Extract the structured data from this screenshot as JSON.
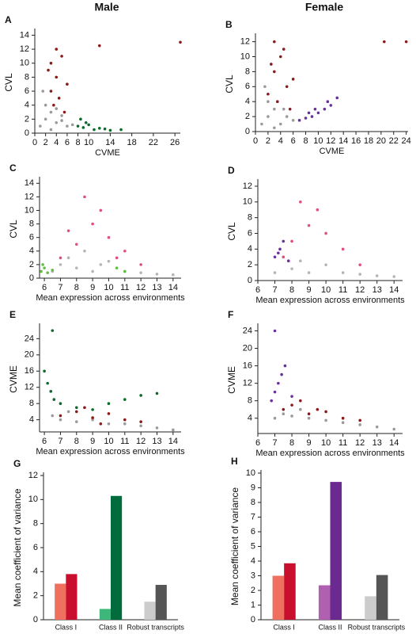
{
  "figure": {
    "columns": [
      "Male",
      "Female"
    ]
  },
  "chart_data": [
    {
      "type": "scatter",
      "panel": "A",
      "xlabel": "CVME",
      "ylabel": "CVL",
      "xlim": [
        0,
        27
      ],
      "ylim": [
        0,
        14.5
      ],
      "xticks": [
        0,
        2,
        4,
        6,
        8,
        10,
        14,
        18,
        22,
        26
      ],
      "yticks": [
        0,
        2,
        4,
        6,
        8,
        10,
        12,
        14
      ],
      "series": [
        {
          "color": "#9a9a9a",
          "x": [
            1,
            2,
            3,
            4,
            5,
            6,
            2,
            3,
            4,
            7,
            1.5,
            5
          ],
          "values": [
            1,
            2,
            3,
            1.5,
            2.5,
            1,
            4,
            0.5,
            3.5,
            1.2,
            6,
            1.8
          ]
        },
        {
          "color": "#8b1a1a",
          "x": [
            3,
            4,
            5,
            3.5,
            4.5,
            2.5,
            6,
            5.5,
            4,
            3,
            12,
            27
          ],
          "values": [
            6,
            8,
            11,
            4,
            5,
            9,
            7,
            3,
            12,
            10,
            12.5,
            13
          ]
        },
        {
          "color": "#0a6b2a",
          "x": [
            8,
            9,
            10,
            11,
            12,
            13,
            14,
            16,
            9.5,
            8.5
          ],
          "values": [
            1,
            0.8,
            1.2,
            0.5,
            0.7,
            0.6,
            0.4,
            0.5,
            1.5,
            2
          ]
        }
      ]
    },
    {
      "type": "scatter",
      "panel": "B",
      "xlabel": "CVME",
      "ylabel": "CVL",
      "xlim": [
        0,
        24.3
      ],
      "ylim": [
        0,
        12.7
      ],
      "xticks": [
        0,
        2,
        4,
        6,
        8,
        10,
        12,
        14,
        16,
        18,
        20,
        22,
        24
      ],
      "yticks": [
        0,
        2,
        4,
        6,
        8,
        10,
        12
      ],
      "series": [
        {
          "color": "#9a9a9a",
          "x": [
            1,
            2,
            3,
            4,
            5,
            6,
            2,
            3,
            1.5,
            4.5
          ],
          "values": [
            1,
            2,
            3,
            1,
            2,
            1.5,
            4,
            0.5,
            6,
            3
          ]
        },
        {
          "color": "#8b1a1a",
          "x": [
            2,
            3,
            4,
            5,
            3.5,
            6,
            2.5,
            4.5,
            5.5,
            3,
            20.5,
            24
          ],
          "values": [
            5,
            8,
            10,
            6,
            4,
            7,
            9,
            11,
            3,
            12,
            12,
            12
          ]
        },
        {
          "color": "#6b2fa0",
          "x": [
            7,
            8,
            9,
            10,
            11,
            12,
            13,
            8.5,
            9.5,
            11.5
          ],
          "values": [
            1.5,
            1.8,
            2,
            2.5,
            3,
            3.5,
            4.5,
            2.5,
            3,
            4
          ]
        }
      ]
    },
    {
      "type": "scatter",
      "panel": "C",
      "xlabel": "Mean expression across environments",
      "ylabel": "CVL",
      "xlim": [
        5.7,
        14.5
      ],
      "ylim": [
        0,
        14.5
      ],
      "xticks": [
        6,
        7,
        8,
        9,
        10,
        11,
        12,
        13,
        14
      ],
      "yticks": [
        0,
        2,
        4,
        6,
        8,
        10,
        12,
        14
      ],
      "series": [
        {
          "color": "#b5b5b5",
          "x": [
            6.5,
            7,
            8,
            9,
            10,
            11,
            12,
            13,
            14,
            7.5,
            8.5,
            9.5
          ],
          "values": [
            1,
            2,
            1.5,
            1,
            2.5,
            1,
            0.8,
            0.6,
            0.5,
            3,
            4,
            2
          ]
        },
        {
          "color": "#e0507a",
          "x": [
            7,
            8,
            9,
            10,
            11,
            8.5,
            9.5,
            7.5,
            10.5,
            12
          ],
          "values": [
            3,
            5,
            8,
            6,
            4,
            12,
            10,
            7,
            3,
            2
          ]
        },
        {
          "color": "#5cc040",
          "x": [
            5.8,
            6,
            6.2,
            6.5,
            5.9,
            10.5,
            11
          ],
          "values": [
            1,
            1.5,
            0.8,
            1.2,
            2,
            1.5,
            1
          ]
        }
      ]
    },
    {
      "type": "scatter",
      "panel": "D",
      "ylabel": "CVL",
      "xlabel": "Mean expression across environments",
      "xlim": [
        6,
        14.5
      ],
      "ylim": [
        0,
        12.5
      ],
      "xticks": [
        6,
        7,
        8,
        9,
        10,
        11,
        12,
        13,
        14
      ],
      "yticks": [
        0,
        2,
        4,
        6,
        8,
        10,
        12
      ],
      "series": [
        {
          "color": "#b5b5b5",
          "x": [
            7,
            8,
            9,
            10,
            11,
            12,
            13,
            14,
            7.5,
            8.5
          ],
          "values": [
            1,
            1.5,
            1,
            2,
            1,
            0.8,
            0.6,
            0.5,
            3,
            2.5
          ]
        },
        {
          "color": "#e0507a",
          "x": [
            7.5,
            8,
            9,
            10,
            11,
            8.5,
            9.5,
            12
          ],
          "values": [
            3,
            5,
            7,
            6,
            4,
            10,
            9,
            2
          ]
        },
        {
          "color": "#6b2fa0",
          "x": [
            7,
            7.3,
            7.5,
            7.8,
            7.2
          ],
          "values": [
            3,
            4,
            5,
            2.5,
            3.5
          ]
        }
      ]
    },
    {
      "type": "scatter",
      "panel": "E",
      "ylabel": "CVME",
      "xlabel": "Mean expression across environments",
      "xlim": [
        5.7,
        14.5
      ],
      "ylim": [
        1,
        27
      ],
      "xticks": [
        6,
        7,
        8,
        9,
        10,
        11,
        12,
        13,
        14
      ],
      "yticks": [
        4,
        8,
        12,
        16,
        20,
        24
      ],
      "series": [
        {
          "color": "#9a9a9a",
          "x": [
            6.5,
            7,
            8,
            9,
            10,
            11,
            12,
            13,
            14,
            7.5
          ],
          "values": [
            5,
            4,
            3.5,
            4,
            3,
            3,
            2.5,
            2,
            1.5,
            6
          ]
        },
        {
          "color": "#8b1a1a",
          "x": [
            7,
            8,
            9,
            10,
            11,
            12,
            8.5,
            9.5
          ],
          "values": [
            5,
            6,
            4.5,
            5.5,
            4,
            3.5,
            7,
            3
          ]
        },
        {
          "color": "#0a6b2a",
          "x": [
            6,
            6.2,
            6.4,
            6.6,
            7,
            8,
            9,
            10,
            11,
            12,
            13,
            6.5
          ],
          "values": [
            16,
            13,
            11,
            9,
            8,
            7,
            6.5,
            8,
            9,
            10,
            10.5,
            26
          ]
        }
      ]
    },
    {
      "type": "scatter",
      "panel": "F",
      "ylabel": "CVME",
      "xlabel": "Mean expression across environments",
      "xlim": [
        6,
        14.5
      ],
      "ylim": [
        0.5,
        25
      ],
      "xticks": [
        6,
        7,
        8,
        9,
        10,
        11,
        12,
        13,
        14
      ],
      "yticks": [
        4,
        8,
        12,
        16,
        20,
        24
      ],
      "series": [
        {
          "color": "#9a9a9a",
          "x": [
            7,
            8,
            9,
            10,
            11,
            12,
            13,
            14,
            7.5,
            8.5
          ],
          "values": [
            4,
            4.5,
            4,
            3.5,
            3,
            2.5,
            2,
            1.5,
            5,
            6
          ]
        },
        {
          "color": "#8b1a1a",
          "x": [
            7.5,
            8,
            9,
            10,
            11,
            12,
            8.5,
            9.5
          ],
          "values": [
            6,
            7,
            5,
            5.5,
            4,
            3.5,
            8,
            6
          ]
        },
        {
          "color": "#6b2fa0",
          "x": [
            6.8,
            7,
            7.2,
            7.4,
            7.6,
            7,
            8
          ],
          "values": [
            8,
            10,
            12,
            14,
            16,
            24,
            9
          ]
        }
      ]
    },
    {
      "type": "bar",
      "panel": "G",
      "ylabel": "Mean coefficient of variance",
      "categories": [
        "Class I",
        "Class II",
        "Robust transcripts"
      ],
      "ylim": [
        0,
        12
      ],
      "yticks": [
        0,
        2,
        4,
        6,
        8,
        10,
        12
      ],
      "series": [
        {
          "colors": [
            "#f07060",
            "#3db87a",
            "#cccccc"
          ],
          "values": [
            3.0,
            0.9,
            1.5
          ]
        },
        {
          "colors": [
            "#c8102e",
            "#006b3c",
            "#555555"
          ],
          "values": [
            3.8,
            10.3,
            2.9
          ]
        }
      ]
    },
    {
      "type": "bar",
      "panel": "H",
      "ylabel": "Mean coefficient of variance",
      "categories": [
        "Class I",
        "Class II",
        "Robust transcripts"
      ],
      "ylim": [
        0,
        10
      ],
      "yticks": [
        0,
        1,
        2,
        3,
        4,
        5,
        6,
        7,
        8,
        9,
        10
      ],
      "series": [
        {
          "colors": [
            "#f07060",
            "#b060b0",
            "#cccccc"
          ],
          "values": [
            3.0,
            2.35,
            1.6
          ]
        },
        {
          "colors": [
            "#c8102e",
            "#6a2a90",
            "#555555"
          ],
          "values": [
            3.85,
            9.4,
            3.05
          ]
        }
      ]
    }
  ]
}
